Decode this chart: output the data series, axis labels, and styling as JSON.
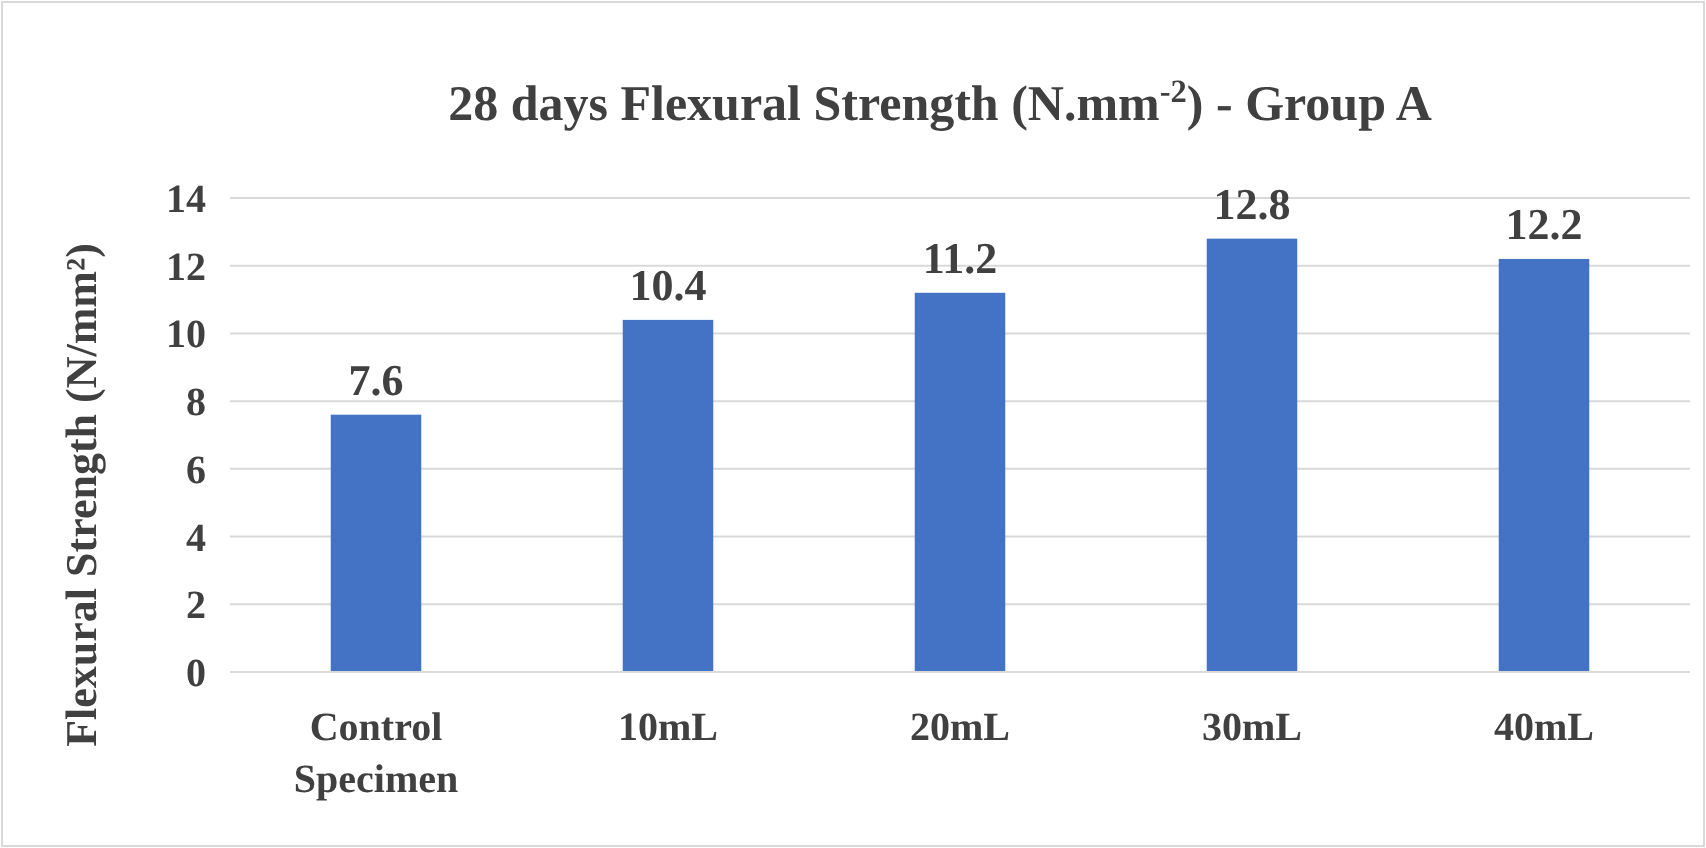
{
  "chart_data": {
    "type": "bar",
    "title": "28 days Flexural Strength (N.mm$^{-2}$) - Group A",
    "ylabel": "Flexural Strength (N/mm²)",
    "categories": [
      "Control Specimen",
      "10mL",
      "20mL",
      "30mL",
      "40mL"
    ],
    "values": [
      7.6,
      10.4,
      11.2,
      12.8,
      12.2
    ],
    "color": "#4472c4",
    "ylim": [
      0,
      14
    ],
    "yticks": [
      0,
      2,
      4,
      6,
      8,
      10,
      12,
      14
    ],
    "grid": "y",
    "data_labels": true
  }
}
